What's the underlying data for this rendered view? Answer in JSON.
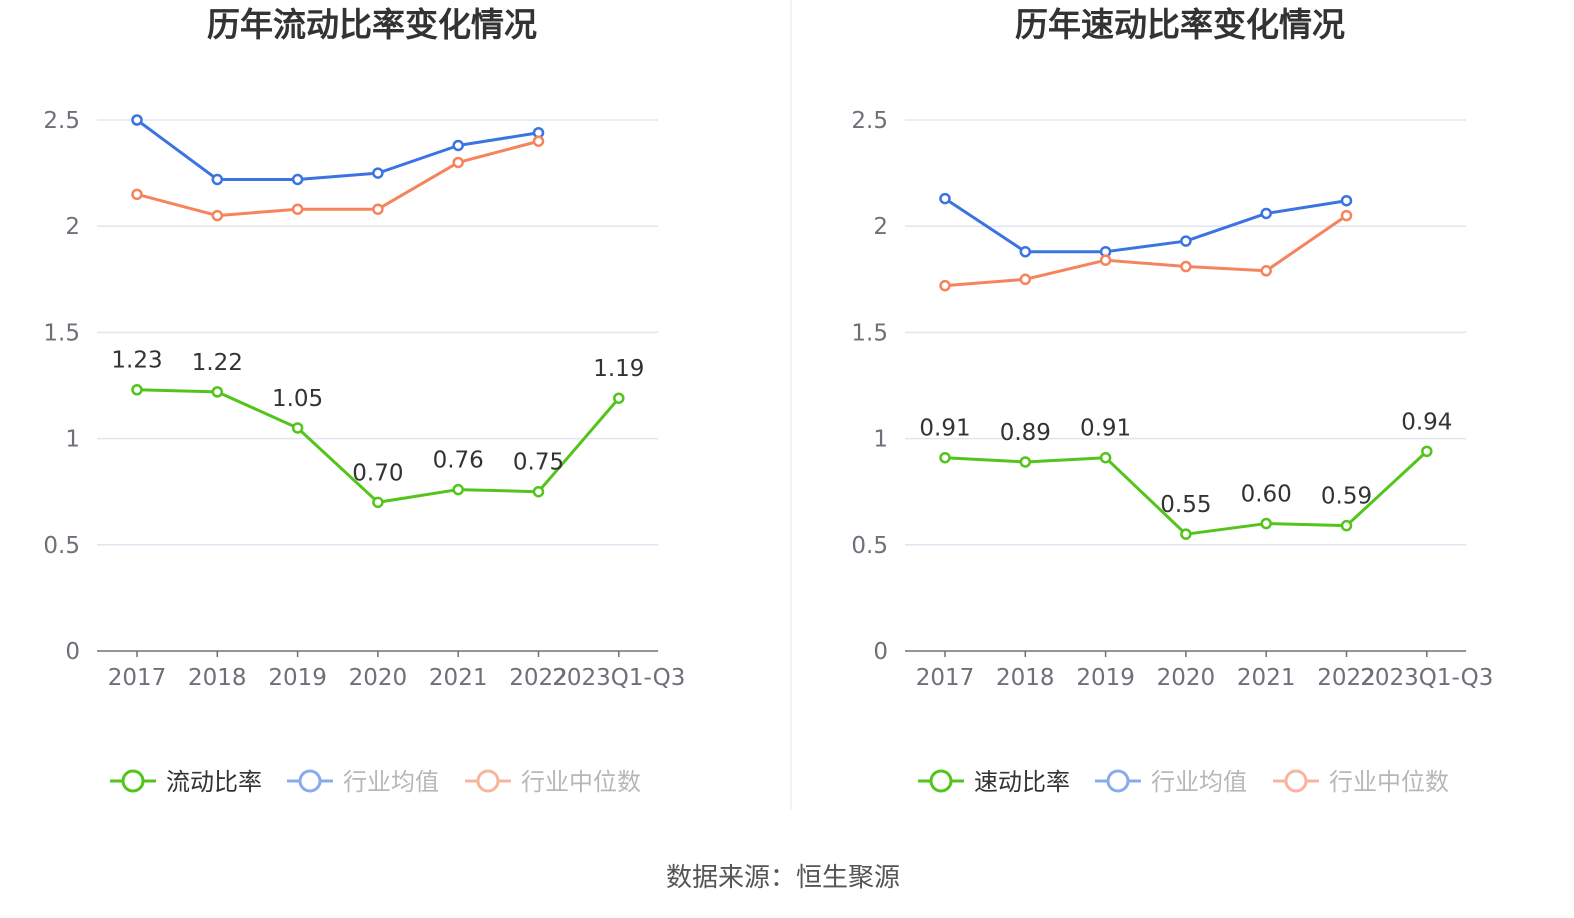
{
  "source": "数据来源：恒生聚源",
  "colors": {
    "main": "#52c41a",
    "avg": "#3b74e0",
    "median": "#f5845c",
    "grid": "#e0e6f1",
    "axis": "#6e7079"
  },
  "chart_data": [
    {
      "type": "line",
      "title": "历年流动比率变化情况",
      "categories": [
        "2017",
        "2018",
        "2019",
        "2020",
        "2021",
        "2022",
        "2023Q1-Q3"
      ],
      "ylim": [
        0,
        2.5
      ],
      "yticks": [
        "0",
        "0.5",
        "1",
        "1.5",
        "2",
        "2.5"
      ],
      "series": [
        {
          "name": "流动比率",
          "key": "main",
          "values": [
            1.23,
            1.22,
            1.05,
            0.7,
            0.76,
            0.75,
            1.19
          ],
          "labels": [
            "1.23",
            "1.22",
            "1.05",
            "0.70",
            "0.76",
            "0.75",
            "1.19"
          ]
        },
        {
          "name": "行业均值",
          "key": "avg",
          "values": [
            2.5,
            2.22,
            2.22,
            2.25,
            2.38,
            2.44,
            null
          ]
        },
        {
          "name": "行业中位数",
          "key": "median",
          "values": [
            2.15,
            2.05,
            2.08,
            2.08,
            2.3,
            2.4,
            null
          ]
        }
      ]
    },
    {
      "type": "line",
      "title": "历年速动比率变化情况",
      "categories": [
        "2017",
        "2018",
        "2019",
        "2020",
        "2021",
        "2022",
        "2023Q1-Q3"
      ],
      "ylim": [
        0,
        2.5
      ],
      "yticks": [
        "0",
        "0.5",
        "1",
        "1.5",
        "2",
        "2.5"
      ],
      "series": [
        {
          "name": "速动比率",
          "key": "main",
          "values": [
            0.91,
            0.89,
            0.91,
            0.55,
            0.6,
            0.59,
            0.94
          ],
          "labels": [
            "0.91",
            "0.89",
            "0.91",
            "0.55",
            "0.60",
            "0.59",
            "0.94"
          ]
        },
        {
          "name": "行业均值",
          "key": "avg",
          "values": [
            2.13,
            1.88,
            1.88,
            1.93,
            2.06,
            2.12,
            null
          ]
        },
        {
          "name": "行业中位数",
          "key": "median",
          "values": [
            1.72,
            1.75,
            1.84,
            1.81,
            1.79,
            2.05,
            null
          ]
        }
      ]
    }
  ]
}
